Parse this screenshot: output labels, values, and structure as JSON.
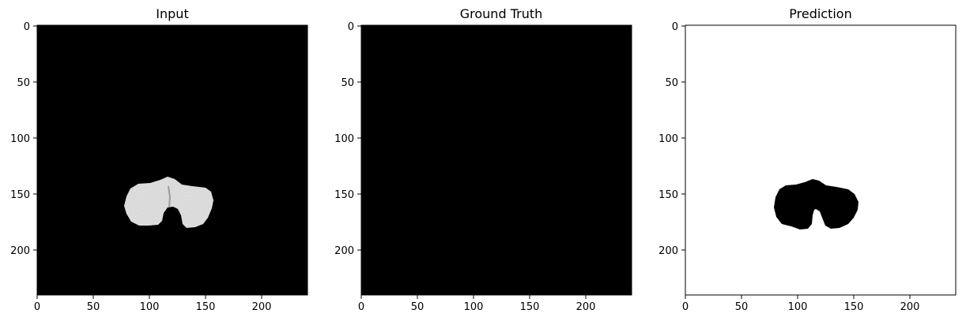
{
  "figure": {
    "panels": [
      {
        "title": "Input",
        "background": "#000000",
        "blob": "#e2e2e2",
        "blob_texture": true,
        "image_type": "grayscale-ct-slice"
      },
      {
        "title": "Ground Truth",
        "background": "#000000",
        "blob": null,
        "image_type": "empty-mask"
      },
      {
        "title": "Prediction",
        "background": "#ffffff",
        "blob": "#000000",
        "blob_texture": false,
        "image_type": "binary-mask"
      }
    ],
    "axis": {
      "xticks": [
        "0",
        "50",
        "100",
        "150",
        "200"
      ],
      "yticks": [
        "0",
        "50",
        "100",
        "150",
        "200"
      ],
      "image_size": [
        240,
        240
      ]
    },
    "colors": {
      "text": "#000000",
      "spine": "#000000"
    }
  }
}
